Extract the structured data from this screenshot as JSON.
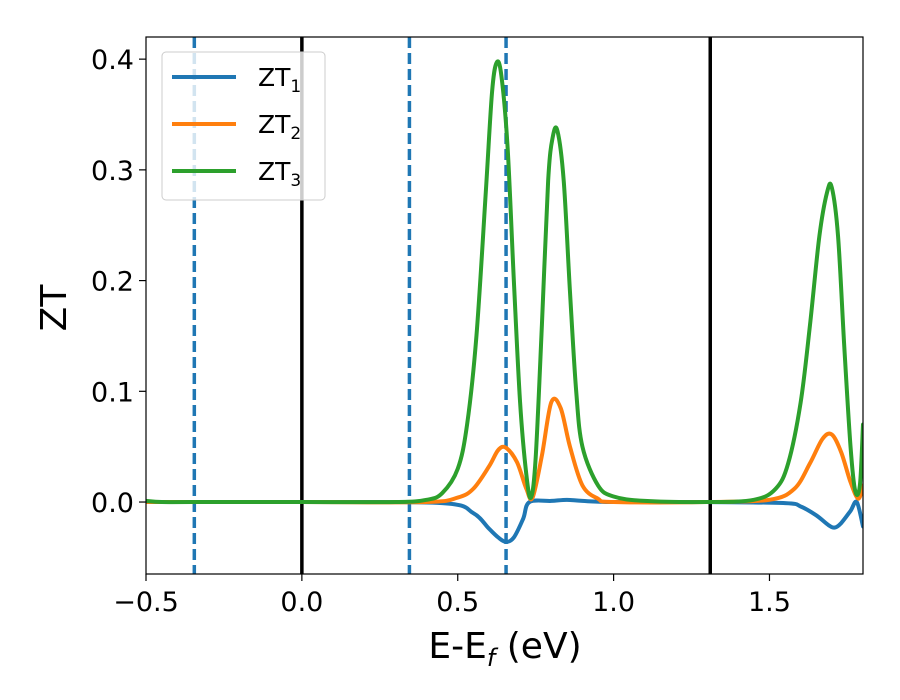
{
  "chart_data": {
    "type": "line",
    "xlabel_main": "E-E",
    "xlabel_sub": "f",
    "xlabel_unit": " (eV)",
    "ylabel": "ZT",
    "xlim": [
      -0.5,
      1.8
    ],
    "ylim": [
      -0.065,
      0.42
    ],
    "xticks": [
      -0.5,
      0.0,
      0.5,
      1.0,
      1.5
    ],
    "xtick_labels": [
      "−0.5",
      "0.0",
      "0.5",
      "1.0",
      "1.5"
    ],
    "yticks": [
      0.0,
      0.1,
      0.2,
      0.3,
      0.4
    ],
    "ytick_labels": [
      "0.0",
      "0.1",
      "0.2",
      "0.3",
      "0.4"
    ],
    "grid": false,
    "legend_position": "top-left",
    "vlines_solid": [
      0.0,
      1.31
    ],
    "vlines_dashed": [
      -0.345,
      0.345,
      0.655
    ],
    "vline_solid_color": "#000000",
    "vline_dashed_color": "#1f77b4",
    "series": [
      {
        "name_main": "ZT",
        "name_sub": "1",
        "color": "#1f77b4",
        "x": [
          -0.5,
          0.0,
          0.45,
          0.55,
          0.6,
          0.63,
          0.655,
          0.68,
          0.71,
          0.73,
          0.8,
          0.85,
          0.9,
          1.0,
          1.3,
          1.55,
          1.6,
          1.65,
          1.69,
          1.71,
          1.73,
          1.76,
          1.78,
          1.8
        ],
        "y": [
          0.0,
          0.0,
          -0.001,
          -0.01,
          -0.024,
          -0.032,
          -0.036,
          -0.032,
          -0.015,
          0.0,
          0.001,
          0.002,
          0.001,
          0.0,
          0.0,
          -0.001,
          -0.004,
          -0.012,
          -0.021,
          -0.023,
          -0.019,
          -0.008,
          0.0,
          -0.022
        ]
      },
      {
        "name_main": "ZT",
        "name_sub": "2",
        "color": "#ff7f0e",
        "x": [
          -0.5,
          0.0,
          0.4,
          0.5,
          0.55,
          0.6,
          0.63,
          0.655,
          0.69,
          0.72,
          0.74,
          0.77,
          0.8,
          0.83,
          0.86,
          0.9,
          0.95,
          1.0,
          1.3,
          1.5,
          1.58,
          1.63,
          1.67,
          1.7,
          1.73,
          1.76,
          1.785,
          1.8
        ],
        "y": [
          0.0,
          0.0,
          0.0,
          0.004,
          0.012,
          0.032,
          0.047,
          0.049,
          0.036,
          0.012,
          0.004,
          0.042,
          0.09,
          0.085,
          0.05,
          0.015,
          0.003,
          0.0,
          0.0,
          0.002,
          0.012,
          0.035,
          0.057,
          0.061,
          0.045,
          0.018,
          0.003,
          0.015
        ]
      },
      {
        "name_main": "ZT",
        "name_sub": "3",
        "color": "#2ca02c",
        "x": [
          -0.5,
          -0.45,
          -0.35,
          0.0,
          0.3,
          0.4,
          0.45,
          0.5,
          0.53,
          0.56,
          0.59,
          0.61,
          0.625,
          0.64,
          0.66,
          0.68,
          0.7,
          0.72,
          0.735,
          0.75,
          0.77,
          0.79,
          0.805,
          0.82,
          0.84,
          0.86,
          0.88,
          0.9,
          0.95,
          1.0,
          1.1,
          1.3,
          1.45,
          1.52,
          1.56,
          1.6,
          1.63,
          1.66,
          1.685,
          1.7,
          1.72,
          1.74,
          1.76,
          1.775,
          1.79,
          1.8
        ],
        "y": [
          0.001,
          0.0,
          0.0,
          0.0,
          0.0,
          0.002,
          0.008,
          0.03,
          0.07,
          0.15,
          0.28,
          0.37,
          0.397,
          0.385,
          0.32,
          0.2,
          0.09,
          0.025,
          0.004,
          0.04,
          0.16,
          0.29,
          0.33,
          0.335,
          0.29,
          0.19,
          0.1,
          0.05,
          0.015,
          0.005,
          0.001,
          0.0,
          0.002,
          0.012,
          0.035,
          0.09,
          0.16,
          0.24,
          0.28,
          0.284,
          0.24,
          0.14,
          0.05,
          0.01,
          0.015,
          0.07
        ]
      }
    ]
  }
}
